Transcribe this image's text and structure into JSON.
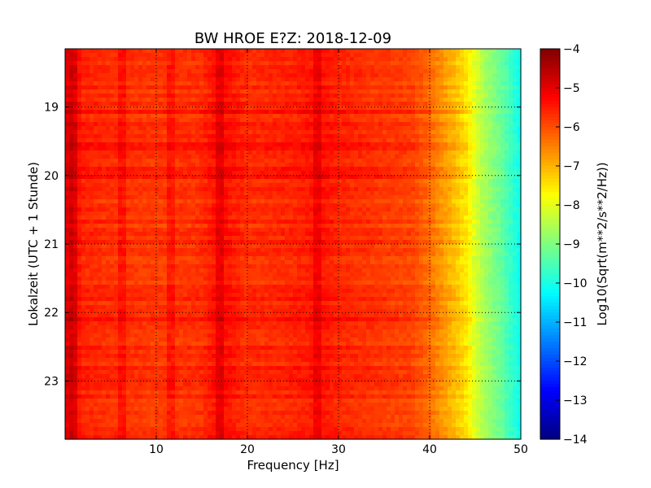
{
  "chart_data": {
    "type": "heatmap",
    "title": "BW HROE E?Z: 2018-12-09",
    "xlabel": "Frequency [Hz]",
    "ylabel": "Lokalzeit (UTC + 1 Stunde)",
    "xlim": [
      0,
      50
    ],
    "ylim": [
      18.15,
      23.85
    ],
    "y_inverted": true,
    "x_ticks": [
      10,
      20,
      30,
      40,
      50
    ],
    "y_ticks": [
      19,
      20,
      21,
      22,
      23
    ],
    "grid": true,
    "colorbar": {
      "label": "Log10(Sqrt(m**2/s**2/Hz))",
      "range": [
        -14,
        -4
      ],
      "ticks": [
        -4,
        -5,
        -6,
        -7,
        -8,
        -9,
        -10,
        -11,
        -12,
        -13,
        -14
      ],
      "colormap": "jet"
    },
    "approx_profile": {
      "frequency_hz": [
        0,
        1,
        2,
        5,
        10,
        15,
        17,
        20,
        25,
        28,
        30,
        35,
        38,
        40,
        42,
        44,
        45,
        46,
        48,
        50
      ],
      "level": [
        -4.9,
        -5.2,
        -5.6,
        -5.7,
        -5.8,
        -5.7,
        -5.3,
        -5.7,
        -5.6,
        -5.4,
        -5.6,
        -5.8,
        -5.9,
        -6.3,
        -6.9,
        -7.5,
        -8.1,
        -8.6,
        -9.3,
        -10.2
      ]
    },
    "notable_lines_hz": [
      0.7,
      6.2,
      11.4,
      16.8,
      27.5
    ]
  }
}
